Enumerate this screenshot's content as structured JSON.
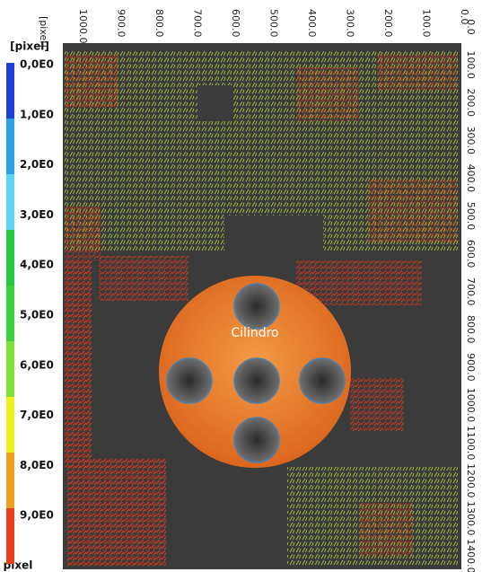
{
  "top_axis": {
    "unit": "[pixel]",
    "ticks": [
      "1000.0",
      "900.0",
      "800.0",
      "700.0",
      "600.0",
      "500.0",
      "400.0",
      "300.0",
      "200.0",
      "100.0",
      "0.0"
    ]
  },
  "right_axis": {
    "ticks": [
      "0.0",
      "100.0",
      "200.0",
      "300.0",
      "400.0",
      "500.0",
      "600.0",
      "700.0",
      "800.0",
      "900.0",
      "1000.0",
      "1100.0",
      "1200.0",
      "1300.0",
      "1400.0"
    ]
  },
  "colorbar": {
    "title": "[pixel]",
    "unit": "pixel",
    "labels": [
      "0,0E0",
      "1,0E0",
      "2,0E0",
      "3,0E0",
      "4,0E0",
      "5,0E0",
      "6,0E0",
      "7,0E0",
      "8,0E0",
      "9,0E0"
    ]
  },
  "overlay": {
    "label": "Cilindro"
  }
}
